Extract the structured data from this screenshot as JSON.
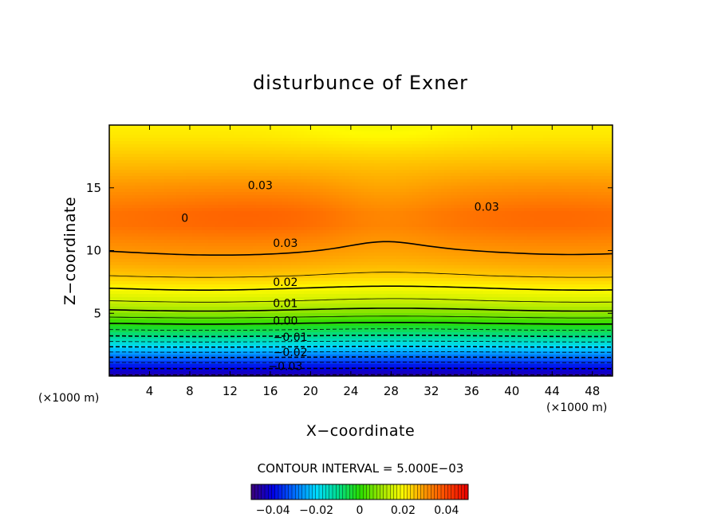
{
  "chart_data": {
    "type": "contour",
    "title": "disturbunce of Exner",
    "xlabel": "X−coordinate",
    "ylabel": "Z−coordinate",
    "x_unit": "(×1000 m)",
    "z_unit": "(×1000 m)",
    "xlim": [
      0,
      50
    ],
    "ylim": [
      0,
      20
    ],
    "x_ticks": [
      4,
      8,
      12,
      16,
      20,
      24,
      28,
      32,
      36,
      40,
      44,
      48
    ],
    "y_ticks": [
      5,
      10,
      15
    ],
    "contour_interval_text": "CONTOUR INTERVAL = 5.000E−03",
    "colorbar": {
      "range": [
        -0.05,
        0.05
      ],
      "ticks": [
        {
          "value": -0.04,
          "label": "−0.04"
        },
        {
          "value": -0.02,
          "label": "−0.02"
        },
        {
          "value": 0,
          "label": "0"
        },
        {
          "value": 0.02,
          "label": "0.02"
        },
        {
          "value": 0.04,
          "label": "0.04"
        }
      ]
    },
    "profile": [
      {
        "z": 0,
        "v": -0.046
      },
      {
        "z": 1,
        "v": -0.036
      },
      {
        "z": 2,
        "v": -0.024
      },
      {
        "z": 3,
        "v": -0.012
      },
      {
        "z": 4,
        "v": -0.002
      },
      {
        "z": 5,
        "v": 0.008
      },
      {
        "z": 6,
        "v": 0.015
      },
      {
        "z": 7,
        "v": 0.02
      },
      {
        "z": 8,
        "v": 0.025
      },
      {
        "z": 9,
        "v": 0.028
      },
      {
        "z": 10,
        "v": 0.03
      },
      {
        "z": 11,
        "v": 0.032
      },
      {
        "z": 12,
        "v": 0.034
      },
      {
        "z": 13,
        "v": 0.034
      },
      {
        "z": 14,
        "v": 0.032
      },
      {
        "z": 15,
        "v": 0.03
      },
      {
        "z": 16,
        "v": 0.028
      },
      {
        "z": 17,
        "v": 0.026
      },
      {
        "z": 18,
        "v": 0.024
      },
      {
        "z": 19,
        "v": 0.022
      },
      {
        "z": 20,
        "v": 0.021
      }
    ],
    "contour_labels": [
      {
        "text": "0.03",
        "x": 15,
        "z": 15.2
      },
      {
        "text": "0.03",
        "x": 17.5,
        "z": 10.6
      },
      {
        "text": "0.03",
        "x": 37.5,
        "z": 13.5
      },
      {
        "text": "0",
        "x": 7.5,
        "z": 12.6
      },
      {
        "text": "0.02",
        "x": 17.5,
        "z": 7.5
      },
      {
        "text": "0.01",
        "x": 17.5,
        "z": 5.8
      },
      {
        "text": "0.00",
        "x": 17.5,
        "z": 4.4
      },
      {
        "text": "−0.01",
        "x": 18,
        "z": 3.1
      },
      {
        "text": "−0.02",
        "x": 18,
        "z": 1.9
      },
      {
        "text": "−0.03",
        "x": 17.5,
        "z": 0.8
      }
    ]
  }
}
